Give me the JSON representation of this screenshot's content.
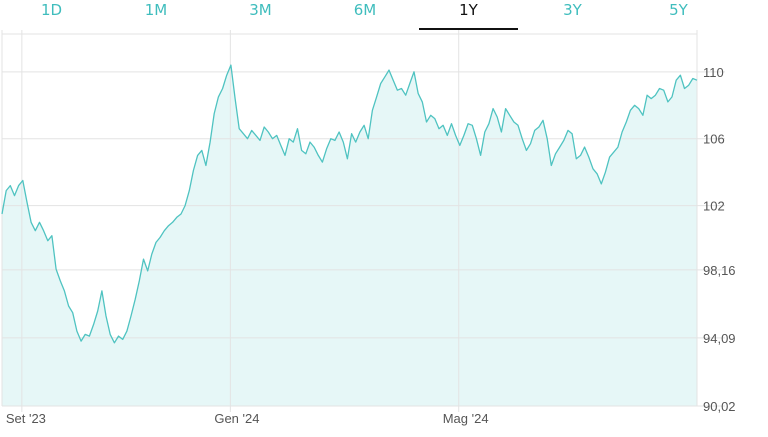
{
  "tabs": [
    {
      "label": "1D",
      "active": false
    },
    {
      "label": "1M",
      "active": false
    },
    {
      "label": "3M",
      "active": false
    },
    {
      "label": "6M",
      "active": false
    },
    {
      "label": "1Y",
      "active": true
    },
    {
      "label": "3Y",
      "active": false
    },
    {
      "label": "5Y",
      "active": false
    }
  ],
  "colors": {
    "accent": "#3fbdbd",
    "line": "#4fc3c1",
    "fill": "#e6f7f7",
    "grid": "#e3e3e3"
  },
  "chart_data": {
    "type": "area",
    "title": "",
    "xlabel": "",
    "ylabel": "",
    "y_ticks": [
      "110",
      "106",
      "102",
      "98,16",
      "94,09",
      "90,02"
    ],
    "y_tick_values": [
      110,
      106,
      102,
      98.16,
      94.09,
      90.02
    ],
    "ylim": [
      90.02,
      112.5
    ],
    "x_ticks": [
      {
        "label": "Set '23",
        "at": 10
      },
      {
        "label": "Gen '24",
        "at": 115
      },
      {
        "label": "Mag '24",
        "at": 230
      }
    ],
    "xlim": [
      0,
      350
    ],
    "grid": true,
    "series": [
      {
        "values": [
          101.5,
          102.9,
          103.2,
          102.6,
          103.2,
          103.5,
          102.2,
          101.0,
          100.5,
          101.0,
          100.5,
          99.9,
          100.2,
          98.2,
          97.5,
          96.9,
          96.0,
          95.6,
          94.5,
          93.9,
          94.3,
          94.2,
          94.9,
          95.7,
          96.9,
          95.4,
          94.3,
          93.8,
          94.2,
          94.0,
          94.5,
          95.4,
          96.4,
          97.5,
          98.8,
          98.1,
          99.1,
          99.8,
          100.1,
          100.5,
          100.8,
          101.0,
          101.3,
          101.5,
          102.0,
          102.9,
          104.1,
          105.0,
          105.3,
          104.4,
          105.8,
          107.5,
          108.5,
          109.0,
          109.8,
          110.4,
          108.4,
          106.6,
          106.3,
          106.0,
          106.5,
          106.2,
          105.9,
          106.7,
          106.4,
          106.0,
          106.2,
          105.6,
          105.0,
          106.0,
          105.8,
          106.6,
          105.3,
          105.1,
          105.8,
          105.5,
          105.0,
          104.6,
          105.4,
          106.0,
          105.9,
          106.4,
          105.8,
          104.8,
          106.3,
          105.8,
          106.4,
          106.8,
          106.0,
          107.7,
          108.5,
          109.3,
          109.7,
          110.1,
          109.5,
          108.9,
          109.0,
          108.6,
          109.3,
          110.0,
          108.7,
          108.2,
          107.0,
          107.4,
          107.2,
          106.6,
          106.8,
          106.2,
          106.9,
          106.2,
          105.6,
          106.2,
          106.9,
          106.8,
          106.0,
          105.0,
          106.4,
          106.9,
          107.8,
          107.3,
          106.4,
          107.8,
          107.4,
          107.0,
          106.8,
          106.0,
          105.3,
          105.7,
          106.5,
          106.7,
          107.1,
          106.0,
          104.4,
          105.1,
          105.5,
          105.9,
          106.5,
          106.3,
          104.8,
          105.0,
          105.5,
          104.9,
          104.2,
          103.9,
          103.3,
          104.0,
          104.9,
          105.2,
          105.5,
          106.4,
          107.0,
          107.7,
          108.0,
          107.8,
          107.4,
          108.6,
          108.4,
          108.6,
          109.0,
          108.9,
          108.2,
          108.5,
          109.5,
          109.8,
          109.0,
          109.2,
          109.6,
          109.5
        ]
      }
    ]
  }
}
